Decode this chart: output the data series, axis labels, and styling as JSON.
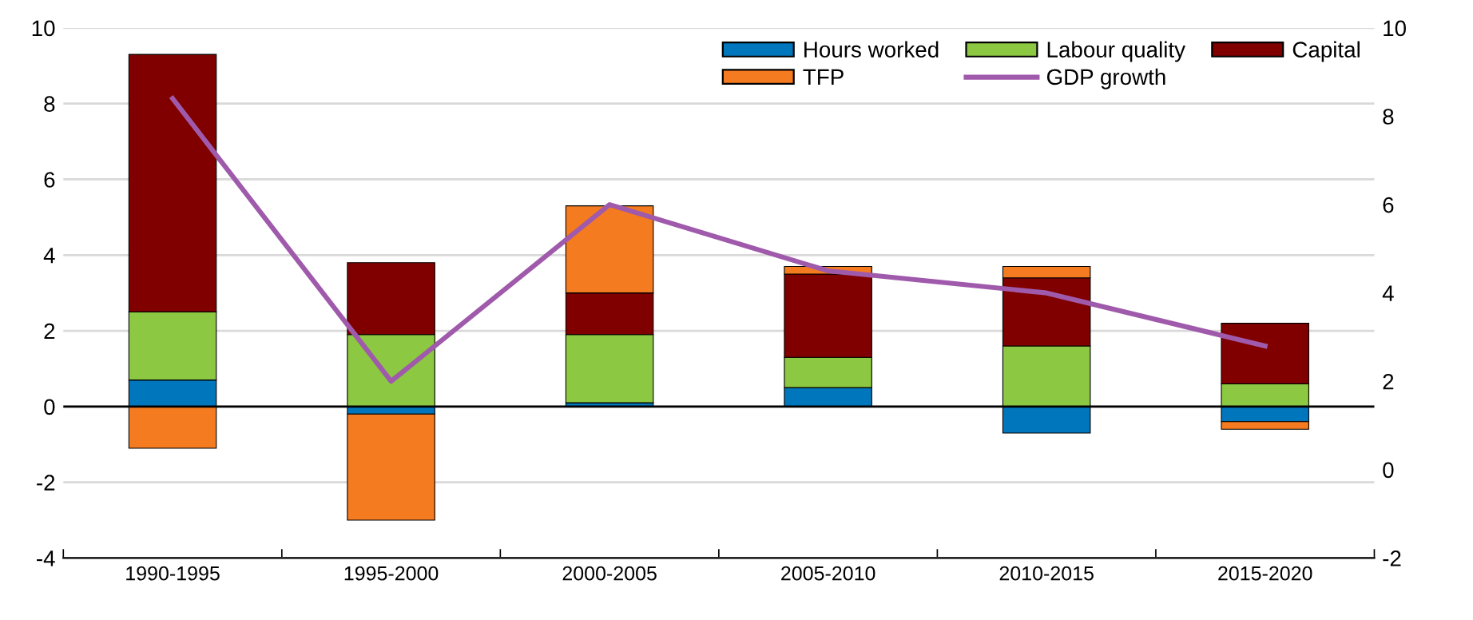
{
  "chart_data": {
    "type": "bar",
    "stacked": true,
    "categories": [
      "1990-1995",
      "1995-2000",
      "2000-2005",
      "2005-2010",
      "2010-2015",
      "2015-2020"
    ],
    "series": [
      {
        "name": "Hours worked",
        "color": "#0077bc",
        "values": [
          0.7,
          -0.2,
          0.1,
          0.5,
          -0.7,
          -0.4
        ]
      },
      {
        "name": "Labour quality",
        "color": "#8cc841",
        "values": [
          1.8,
          1.9,
          1.8,
          0.8,
          1.6,
          0.6
        ]
      },
      {
        "name": "Capital",
        "color": "#800000",
        "values": [
          6.8,
          1.9,
          1.1,
          2.2,
          1.8,
          1.6
        ]
      },
      {
        "name": "TFP",
        "color": "#f47b20",
        "values": [
          -1.1,
          -2.8,
          2.3,
          0.2,
          0.3,
          -0.2
        ]
      },
      {
        "name": "GDP growth",
        "color": "#a05aab",
        "type": "line",
        "axis": "y2",
        "values": [
          8.4,
          2.0,
          6.0,
          4.5,
          4.0,
          2.8
        ]
      }
    ],
    "ylim": [
      -4,
      10
    ],
    "yticks": [
      -4,
      -2,
      0,
      2,
      4,
      6,
      8,
      10
    ],
    "y2lim": [
      -2,
      10
    ],
    "y2ticks": [
      -2,
      0,
      2,
      4,
      6,
      8,
      10
    ],
    "ref_lines": [
      {
        "axis": "y",
        "value": 0,
        "color": "#000000"
      }
    ],
    "grid": "y",
    "legend": "top right",
    "marker": "none",
    "line_style": "solid"
  }
}
